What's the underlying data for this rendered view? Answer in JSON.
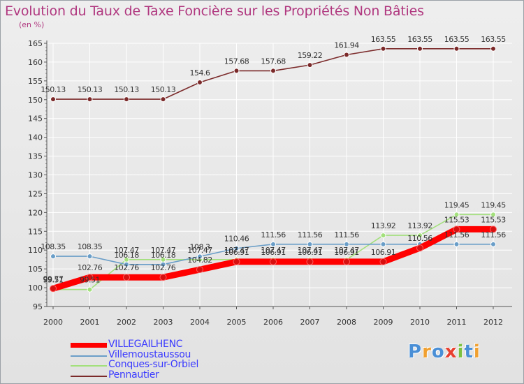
{
  "chart_data": {
    "type": "line",
    "title": "Evolution du Taux de Taxe Foncière sur les Propriétés Non Bâties",
    "ylabel": "(en %)",
    "xlabel": "",
    "ylim": [
      95,
      165
    ],
    "yticks": [
      "95",
      "100",
      "105",
      "110",
      "115",
      "120",
      "125",
      "130",
      "135",
      "140",
      "145",
      "150",
      "155",
      "160",
      "165"
    ],
    "categories": [
      "2000",
      "2001",
      "2002",
      "2003",
      "2004",
      "2005",
      "2006",
      "2007",
      "2008",
      "2009",
      "2010",
      "2011",
      "2012"
    ],
    "series": [
      {
        "name": "VILLEGAILHENC",
        "color": "#ff0000",
        "values": [
          99.77,
          102.76,
          102.76,
          102.76,
          104.82,
          106.91,
          106.91,
          106.91,
          106.91,
          106.91,
          110.56,
          115.53,
          115.53
        ],
        "labels": [
          "99.77",
          "102.76",
          "102.76",
          "102.76",
          "104.82",
          "106.91",
          "106.91",
          "106.91",
          "106.91",
          "106.91",
          "110.56",
          "115.53",
          "115.53"
        ]
      },
      {
        "name": "Villemoustaussou",
        "color": "#6a9ec8",
        "values": [
          108.35,
          108.35,
          106.18,
          106.18,
          108.3,
          110.46,
          111.56,
          111.56,
          111.56,
          111.56,
          111.56,
          111.56,
          111.56
        ],
        "labels": [
          "108.35",
          "108.35",
          "106.18",
          "106.18",
          "108.3",
          "110.46",
          "111.56",
          "111.56",
          "111.56",
          "",
          "",
          "111.56",
          "111.56"
        ]
      },
      {
        "name": "Conques-sur-Orbiel",
        "color": "#a3e07c",
        "values": [
          99.51,
          99.51,
          107.47,
          107.47,
          107.47,
          107.47,
          107.47,
          107.47,
          107.47,
          113.92,
          113.92,
          119.45,
          119.45
        ],
        "labels": [
          "99.51",
          "99.51",
          "107.47",
          "107.47",
          "107.47",
          "107.47",
          "107.47",
          "107.47",
          "107.47",
          "113.92",
          "113.92",
          "119.45",
          "119.45"
        ]
      },
      {
        "name": "Pennautier",
        "color": "#7b2a2a",
        "values": [
          150.13,
          150.13,
          150.13,
          150.13,
          154.6,
          157.68,
          157.68,
          159.22,
          161.94,
          163.55,
          163.55,
          163.55,
          163.55
        ],
        "labels": [
          "150.13",
          "150.13",
          "150.13",
          "150.13",
          "154.6",
          "157.68",
          "157.68",
          "159.22",
          "161.94",
          "163.55",
          "163.55",
          "163.55",
          "163.55"
        ]
      }
    ]
  },
  "brand": {
    "letters": [
      {
        "ch": "P",
        "color": "#4a8fd6"
      },
      {
        "ch": "r",
        "color": "#f0a030"
      },
      {
        "ch": "o",
        "color": "#4a8fd6"
      },
      {
        "ch": "x",
        "color": "#e84030"
      },
      {
        "ch": "i",
        "color": "#7cc040"
      },
      {
        "ch": "t",
        "color": "#4a8fd6"
      },
      {
        "ch": "i",
        "color": "#f0a030"
      }
    ]
  }
}
